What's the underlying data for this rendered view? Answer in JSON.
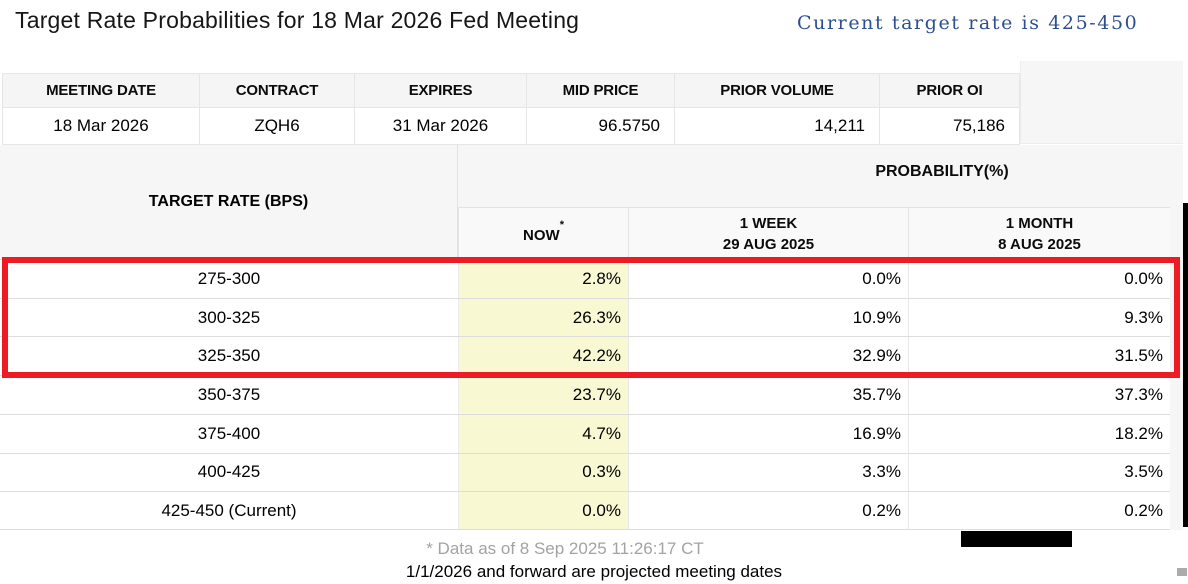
{
  "page": {
    "title": "Target Rate Probabilities for 18 Mar 2026 Fed Meeting",
    "current_rate_note": "Current target rate is 425-450"
  },
  "contract_table": {
    "headers": [
      "MEETING DATE",
      "CONTRACT",
      "EXPIRES",
      "MID PRICE",
      "PRIOR VOLUME",
      "PRIOR OI"
    ],
    "row": {
      "meeting_date": "18 Mar 2026",
      "contract": "ZQH6",
      "expires": "31 Mar 2026",
      "mid_price": "96.5750",
      "prior_volume": "14,211",
      "prior_oi": "75,186"
    }
  },
  "probability_table": {
    "target_rate_header": "TARGET RATE (BPS)",
    "group_header": "PROBABILITY(%)",
    "now_header": {
      "label": "NOW",
      "footnote_marker": "*"
    },
    "week_header": {
      "line1": "1 WEEK",
      "line2": "29 AUG 2025"
    },
    "month_header": {
      "line1": "1 MONTH",
      "line2": "8 AUG 2025"
    },
    "rows": [
      {
        "rate": "275-300",
        "now": "2.8%",
        "week": "0.0%",
        "month": "0.0%"
      },
      {
        "rate": "300-325",
        "now": "26.3%",
        "week": "10.9%",
        "month": "9.3%"
      },
      {
        "rate": "325-350",
        "now": "42.2%",
        "week": "32.9%",
        "month": "31.5%"
      },
      {
        "rate": "350-375",
        "now": "23.7%",
        "week": "35.7%",
        "month": "37.3%"
      },
      {
        "rate": "375-400",
        "now": "4.7%",
        "week": "16.9%",
        "month": "18.2%"
      },
      {
        "rate": "400-425",
        "now": "0.3%",
        "week": "3.3%",
        "month": "3.5%"
      },
      {
        "rate": "425-450 (Current)",
        "now": "0.0%",
        "week": "0.2%",
        "month": "0.2%"
      }
    ],
    "highlight": {
      "highlighted_rates": [
        "275-300",
        "300-325",
        "325-350"
      ],
      "color": "#ed1c24"
    },
    "now_column_color": "#f8f8d3"
  },
  "footer": {
    "data_asof": "* Data as of 8 Sep 2025 11:26:17 CT",
    "projection_note": "1/1/2026 and forward are projected meeting dates"
  },
  "colors": {
    "accent_blue": "#2d4f8f",
    "highlight_red": "#ed1c24",
    "now_column_yellow": "#f8f8d3",
    "header_gray": "#f6f6f7"
  }
}
